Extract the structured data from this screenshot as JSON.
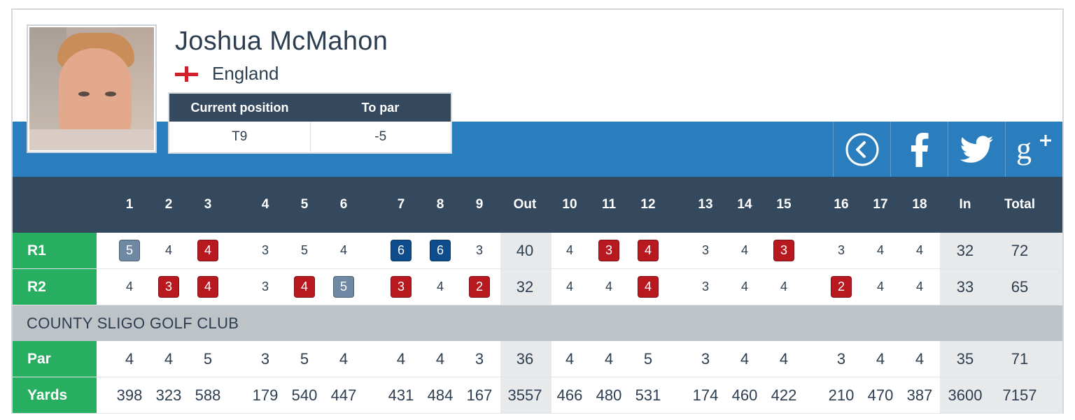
{
  "player": {
    "name": "Joshua McMahon",
    "country": "England"
  },
  "position": {
    "headers": [
      "Current position",
      "To par"
    ],
    "values": [
      "T9",
      "-5"
    ]
  },
  "share": {
    "back_icon": "chevron-left-circle-icon",
    "facebook_icon": "facebook-icon",
    "twitter_icon": "twitter-icon",
    "googleplus_icon": "google-plus-icon"
  },
  "scorecard": {
    "columns": [
      "1",
      "2",
      "3",
      "4",
      "5",
      "6",
      "7",
      "8",
      "9",
      "Out",
      "10",
      "11",
      "12",
      "13",
      "14",
      "15",
      "16",
      "17",
      "18",
      "In",
      "Total"
    ],
    "rounds": [
      {
        "label": "R1",
        "scores": [
          "5",
          "4",
          "4",
          "3",
          "5",
          "4",
          "6",
          "6",
          "3",
          "40",
          "4",
          "3",
          "4",
          "3",
          "4",
          "3",
          "3",
          "4",
          "4",
          "32",
          "72"
        ],
        "marks": [
          "bogey",
          "",
          "birdie",
          "",
          "",
          "",
          "double",
          "double",
          "",
          "",
          "",
          "birdie",
          "birdie",
          "",
          "",
          "birdie",
          "",
          "",
          "",
          "",
          ""
        ]
      },
      {
        "label": "R2",
        "scores": [
          "4",
          "3",
          "4",
          "3",
          "4",
          "5",
          "3",
          "4",
          "2",
          "32",
          "4",
          "4",
          "4",
          "3",
          "4",
          "4",
          "2",
          "4",
          "4",
          "33",
          "65"
        ],
        "marks": [
          "",
          "birdie",
          "birdie",
          "",
          "birdie",
          "bogey",
          "birdie",
          "",
          "birdie",
          "",
          "",
          "",
          "birdie",
          "",
          "",
          "",
          "birdie",
          "",
          "",
          "",
          ""
        ]
      }
    ],
    "course_name": "COUNTY SLIGO GOLF CLUB",
    "par": {
      "label": "Par",
      "values": [
        "4",
        "4",
        "5",
        "3",
        "5",
        "4",
        "4",
        "4",
        "3",
        "36",
        "4",
        "4",
        "5",
        "3",
        "4",
        "4",
        "3",
        "4",
        "4",
        "35",
        "71"
      ]
    },
    "yards": {
      "label": "Yards",
      "values": [
        "398",
        "323",
        "588",
        "179",
        "540",
        "447",
        "431",
        "484",
        "167",
        "3557",
        "466",
        "480",
        "531",
        "174",
        "460",
        "422",
        "210",
        "470",
        "387",
        "3600",
        "7157"
      ]
    }
  },
  "colors": {
    "birdie": "#b8191f",
    "bogey": "#6f88a3",
    "double_bogey": "#0f4c8c",
    "label_green": "#27ae60",
    "header_dark": "#34495e",
    "band_blue": "#2a7ebd"
  }
}
